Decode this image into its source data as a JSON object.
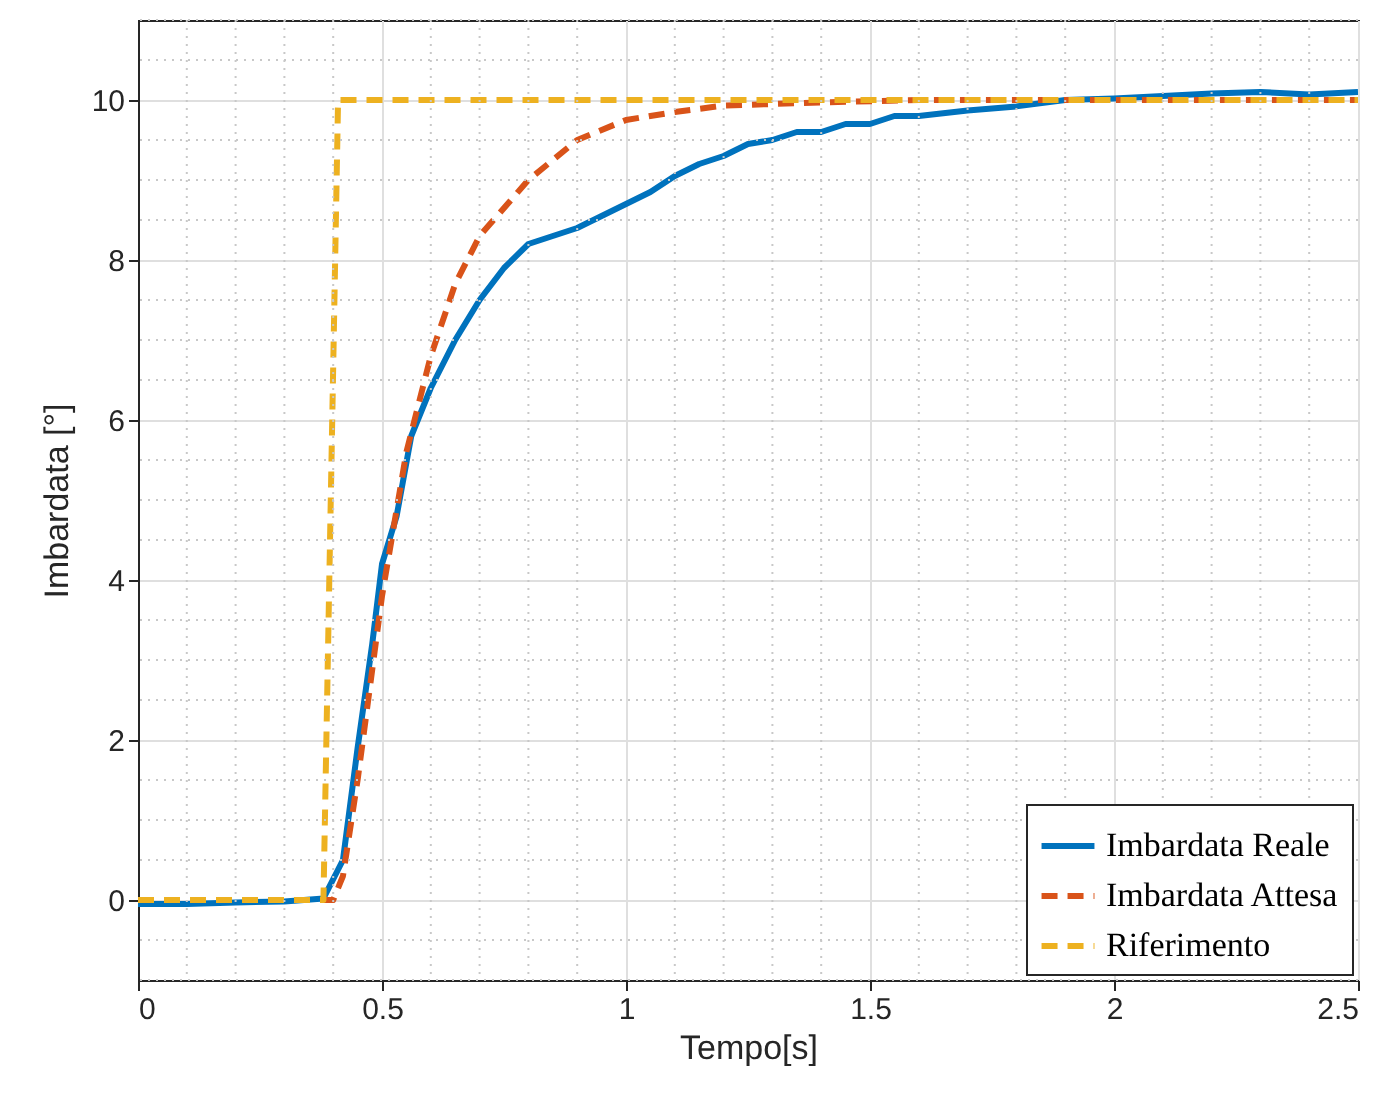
{
  "chart_data": {
    "type": "line",
    "xlabel": "Tempo[s]",
    "ylabel": "Imbardata [°]",
    "xlim": [
      0,
      2.5
    ],
    "ylim": [
      -1,
      11
    ],
    "xticks": [
      0,
      0.5,
      1,
      1.5,
      2,
      2.5
    ],
    "yticks": [
      0,
      2,
      4,
      6,
      8,
      10
    ],
    "grid": true,
    "legend": "bottom right",
    "series": [
      {
        "name": "Imbardata Reale",
        "color": "#0072bd",
        "line_style": "solid",
        "x": [
          0,
          0.1,
          0.2,
          0.3,
          0.38,
          0.42,
          0.45,
          0.48,
          0.5,
          0.53,
          0.56,
          0.6,
          0.65,
          0.7,
          0.75,
          0.8,
          0.85,
          0.9,
          0.95,
          1.0,
          1.05,
          1.1,
          1.15,
          1.2,
          1.25,
          1.3,
          1.35,
          1.4,
          1.45,
          1.5,
          1.55,
          1.6,
          1.7,
          1.8,
          1.9,
          2.0,
          2.1,
          2.2,
          2.3,
          2.4,
          2.5
        ],
        "values": [
          -0.05,
          -0.05,
          -0.03,
          -0.02,
          0.02,
          0.5,
          1.9,
          3.2,
          4.2,
          4.8,
          5.8,
          6.4,
          7.0,
          7.5,
          7.9,
          8.2,
          8.3,
          8.4,
          8.55,
          8.7,
          8.85,
          9.05,
          9.2,
          9.3,
          9.45,
          9.5,
          9.6,
          9.6,
          9.7,
          9.7,
          9.8,
          9.8,
          9.87,
          9.92,
          10.0,
          10.02,
          10.05,
          10.08,
          10.1,
          10.07,
          10.1
        ]
      },
      {
        "name": "Imbardata Attesa",
        "color": "#d95319",
        "line_style": "dashed",
        "x": [
          0,
          0.4,
          0.42,
          0.45,
          0.5,
          0.55,
          0.6,
          0.65,
          0.7,
          0.8,
          0.9,
          1.0,
          1.1,
          1.2,
          1.4,
          1.6,
          2.5
        ],
        "values": [
          0,
          0,
          0.3,
          1.5,
          3.8,
          5.6,
          6.8,
          7.7,
          8.3,
          9.0,
          9.5,
          9.75,
          9.85,
          9.93,
          9.97,
          10.0,
          10.0
        ]
      },
      {
        "name": "Riferimento",
        "color": "#edb120",
        "line_style": "dashed",
        "x": [
          0,
          0.38,
          0.41,
          2.5
        ],
        "values": [
          0,
          0,
          10,
          10
        ]
      }
    ]
  }
}
